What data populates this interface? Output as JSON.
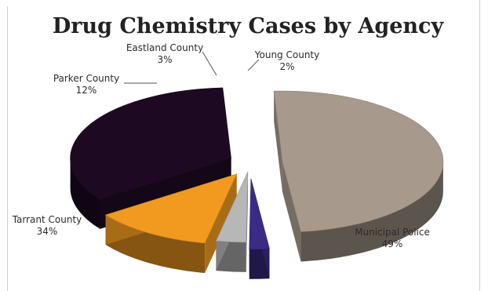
{
  "chart_data": {
    "type": "pie",
    "style": "3d-exploded",
    "title": "Drug Chemistry Cases by Agency",
    "slices": [
      {
        "name": "Municipal Police",
        "value": 49,
        "label": "49%",
        "color": "#a79a8c"
      },
      {
        "name": "Young County",
        "value": 2,
        "label": "2%",
        "color": "#3b2a86"
      },
      {
        "name": "Eastland County",
        "value": 3,
        "label": "3%",
        "color": "#b7b7b7"
      },
      {
        "name": "Parker County",
        "value": 12,
        "label": "12%",
        "color": "#f29a1f"
      },
      {
        "name": "Tarrant County",
        "value": 34,
        "label": "34%",
        "color": "#1d0a22"
      }
    ],
    "legend": "none"
  }
}
